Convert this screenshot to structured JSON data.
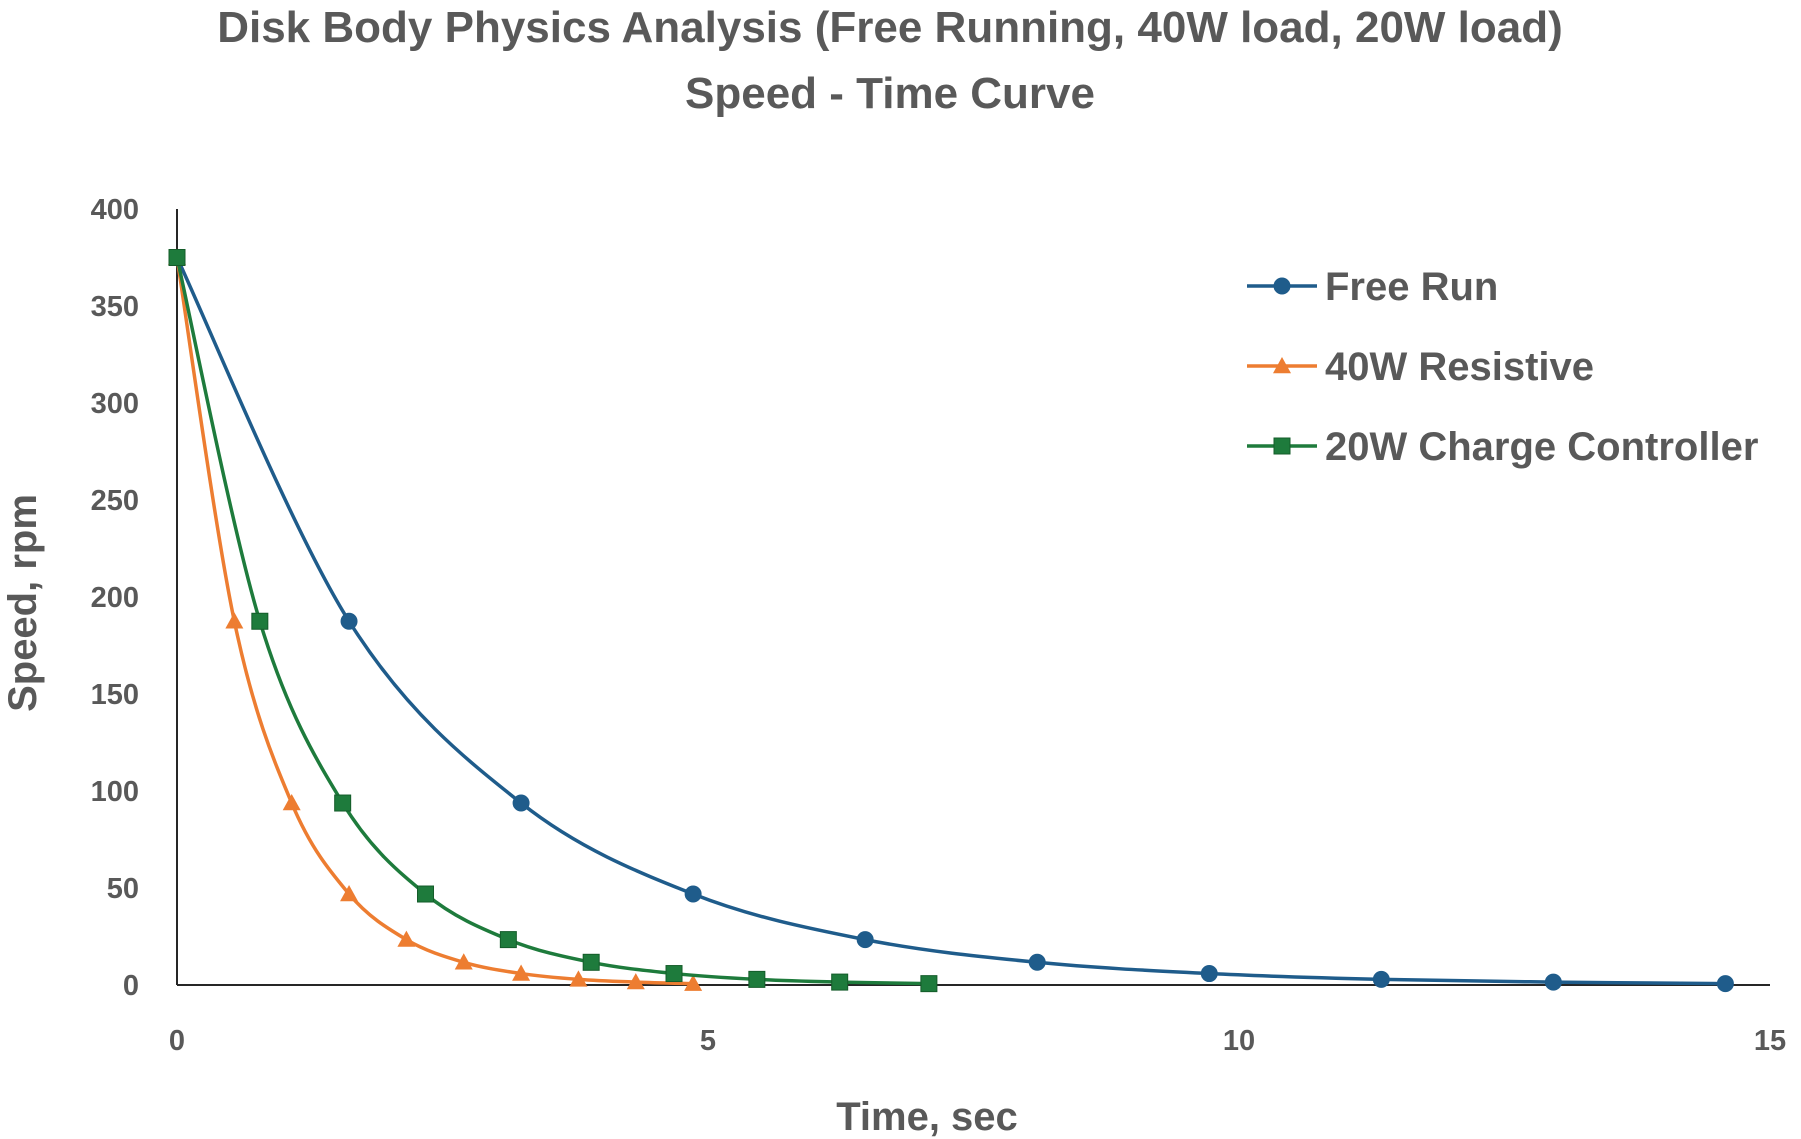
{
  "chart_data": {
    "type": "scatter",
    "title": "Disk Body Physics Analysis (Free Running, 40W load, 20W load)",
    "subtitle": "Speed - Time Curve",
    "xlabel": "Time, sec",
    "ylabel": "Speed, rpm",
    "xlim": [
      0,
      15
    ],
    "ylim": [
      0,
      400
    ],
    "xticks": [
      0,
      5,
      10,
      15
    ],
    "yticks": [
      0,
      50,
      100,
      150,
      200,
      250,
      300,
      350,
      400
    ],
    "grid": false,
    "smooth": true,
    "legend_position": "top-right",
    "series": [
      {
        "name": "Free Run",
        "color": "#1f5c8b",
        "marker": "circle",
        "x": [
          0,
          1.62,
          3.24,
          4.86,
          6.48,
          8.1,
          9.72,
          11.34,
          12.96,
          14.58
        ],
        "y": [
          375,
          187.5,
          93.8,
          46.9,
          23.4,
          11.7,
          5.9,
          2.9,
          1.5,
          0.7
        ]
      },
      {
        "name": "40W Resistive",
        "color": "#ed7d31",
        "marker": "triangle",
        "x": [
          0,
          0.54,
          1.08,
          1.62,
          2.16,
          2.7,
          3.24,
          3.78,
          4.32,
          4.86
        ],
        "y": [
          375,
          187.5,
          93.8,
          46.9,
          23.4,
          11.7,
          5.9,
          2.9,
          1.5,
          0.7
        ]
      },
      {
        "name": "20W Charge Controller",
        "color": "#1e7b3c",
        "marker": "square",
        "x": [
          0,
          0.78,
          1.56,
          2.34,
          3.12,
          3.9,
          4.68,
          5.46,
          6.24,
          7.08
        ],
        "y": [
          375,
          187.5,
          93.8,
          46.9,
          23.4,
          11.7,
          5.9,
          2.9,
          1.5,
          0.7
        ]
      }
    ]
  }
}
